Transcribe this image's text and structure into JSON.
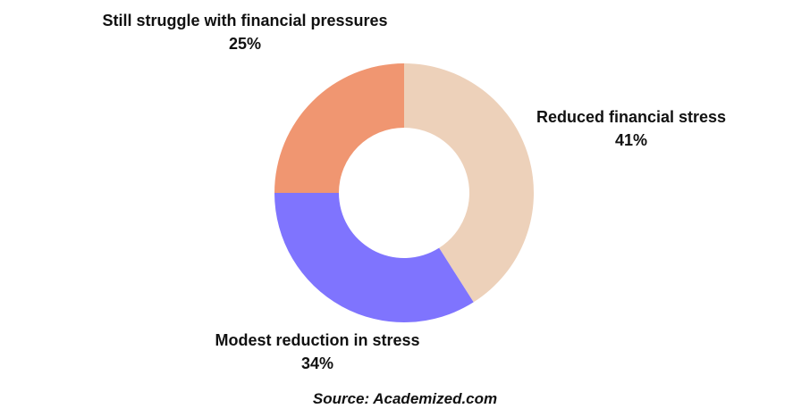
{
  "chart_data": {
    "type": "pie",
    "donut": true,
    "slices": [
      {
        "label": "Reduced financial stress",
        "value": 41,
        "value_label": "41%",
        "color": "#EDD1BA"
      },
      {
        "label": "Modest reduction in stress",
        "value": 34,
        "value_label": "34%",
        "color": "#7F74FE"
      },
      {
        "label": "Still struggle with financial pressures",
        "value": 25,
        "value_label": "25%",
        "color": "#F09671"
      }
    ],
    "start": "top",
    "direction": "clockwise"
  },
  "source": "Source: Academized.com"
}
